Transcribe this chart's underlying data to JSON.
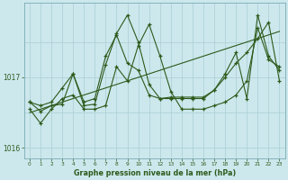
{
  "title": "Graphe pression niveau de la mer (hPa)",
  "background_color": "#cce8ed",
  "line_color": "#2d5a1b",
  "grid_color": "#aacdd4",
  "tick_color": "#2d5a1b",
  "ylim": [
    1015.85,
    1018.05
  ],
  "xlim": [
    -0.5,
    23.5
  ],
  "yticks": [
    1016,
    1017
  ],
  "xticks": [
    0,
    1,
    2,
    3,
    4,
    5,
    6,
    7,
    8,
    9,
    10,
    11,
    12,
    13,
    14,
    15,
    16,
    17,
    18,
    19,
    20,
    21,
    22,
    23
  ],
  "series": [
    [
      1016.55,
      1016.35,
      1016.55,
      1016.7,
      1016.75,
      1016.55,
      1016.55,
      1016.6,
      1017.15,
      1016.95,
      1017.45,
      1017.75,
      1017.3,
      1016.8,
      1016.55,
      1016.55,
      1016.55,
      1016.6,
      1016.65,
      1016.75,
      1016.95,
      1017.7,
      1017.25,
      1017.15
    ],
    [
      1016.65,
      1016.6,
      1016.65,
      1016.85,
      1017.05,
      1016.65,
      1016.7,
      1017.3,
      1017.6,
      1017.2,
      1017.1,
      1016.75,
      1016.7,
      1016.7,
      1016.7,
      1016.7,
      1016.7,
      1016.82,
      1017.0,
      1017.2,
      1017.35,
      1017.55,
      1017.78,
      1016.95
    ],
    [
      1016.65,
      1016.52,
      1016.6,
      1016.62,
      1017.05,
      1016.6,
      1016.62,
      1017.18,
      1017.62,
      1017.88,
      1017.5,
      1016.9,
      1016.7,
      1016.72,
      1016.72,
      1016.72,
      1016.72,
      1016.82,
      1017.05,
      1017.35,
      1016.7,
      1017.88,
      1017.3,
      1017.1
    ]
  ],
  "trend": [
    1016.5,
    1016.55,
    1016.6,
    1016.65,
    1016.7,
    1016.75,
    1016.8,
    1016.85,
    1016.9,
    1016.95,
    1017.0,
    1017.05,
    1017.1,
    1017.15,
    1017.2,
    1017.25,
    1017.3,
    1017.35,
    1017.4,
    1017.45,
    1017.5,
    1017.55,
    1017.6,
    1017.65
  ],
  "figsize": [
    3.2,
    2.0
  ],
  "dpi": 100
}
